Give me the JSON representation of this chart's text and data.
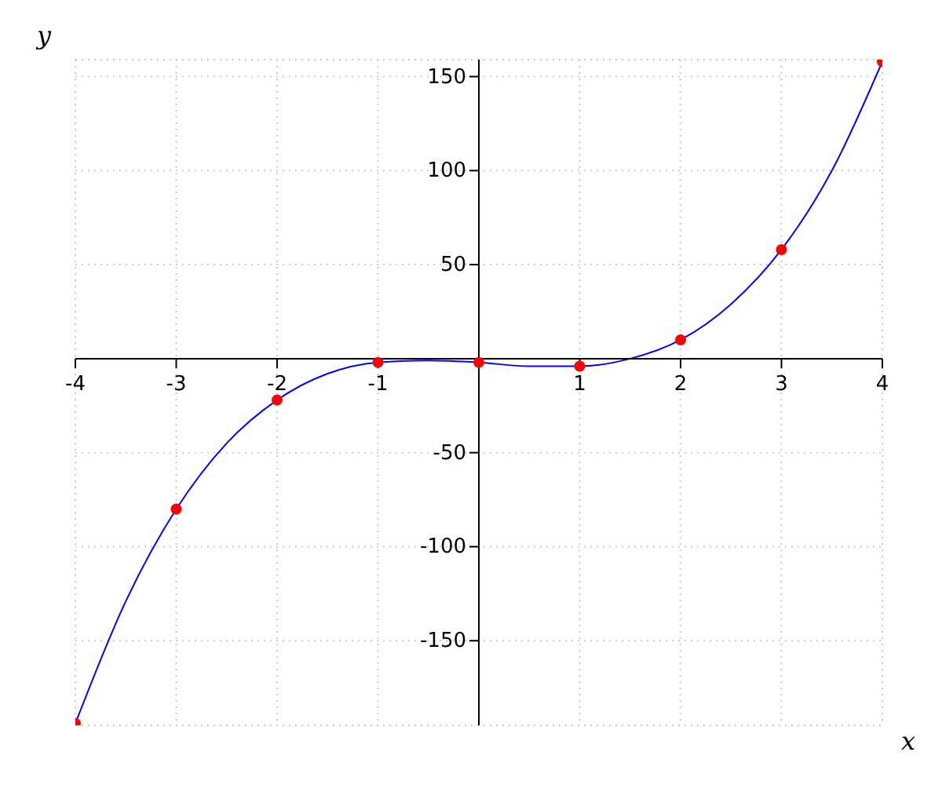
{
  "chart_data": {
    "type": "line",
    "xlabel": "x",
    "ylabel": "y",
    "xlim": [
      -4,
      4
    ],
    "ylim": [
      -195,
      159
    ],
    "xticks": [
      -4,
      -3,
      -2,
      -1,
      1,
      2,
      3,
      4
    ],
    "yticks": [
      -150,
      -100,
      -50,
      50,
      100,
      150
    ],
    "grid": true,
    "series": [
      {
        "color": "#0000ff",
        "marker": "none",
        "x": [
          -4,
          -3.5,
          -3,
          -2.5,
          -2,
          -1.5,
          -1,
          -0.5,
          0,
          0.5,
          1,
          1.5,
          2,
          2.5,
          3,
          3.5,
          4
        ],
        "values": [
          -194,
          -129,
          -80,
          -45,
          -22,
          -8,
          -2,
          -1,
          -2,
          -4,
          -4,
          0,
          10,
          29,
          58,
          100,
          158
        ]
      },
      {
        "type": "scatter",
        "color": "#ff0000",
        "marker": "circle",
        "x": [
          -4,
          -3,
          -2,
          -1,
          0,
          1,
          2,
          3,
          4
        ],
        "values": [
          -194,
          -80,
          -22,
          -2,
          -2,
          -4,
          10,
          58,
          158
        ]
      }
    ]
  }
}
